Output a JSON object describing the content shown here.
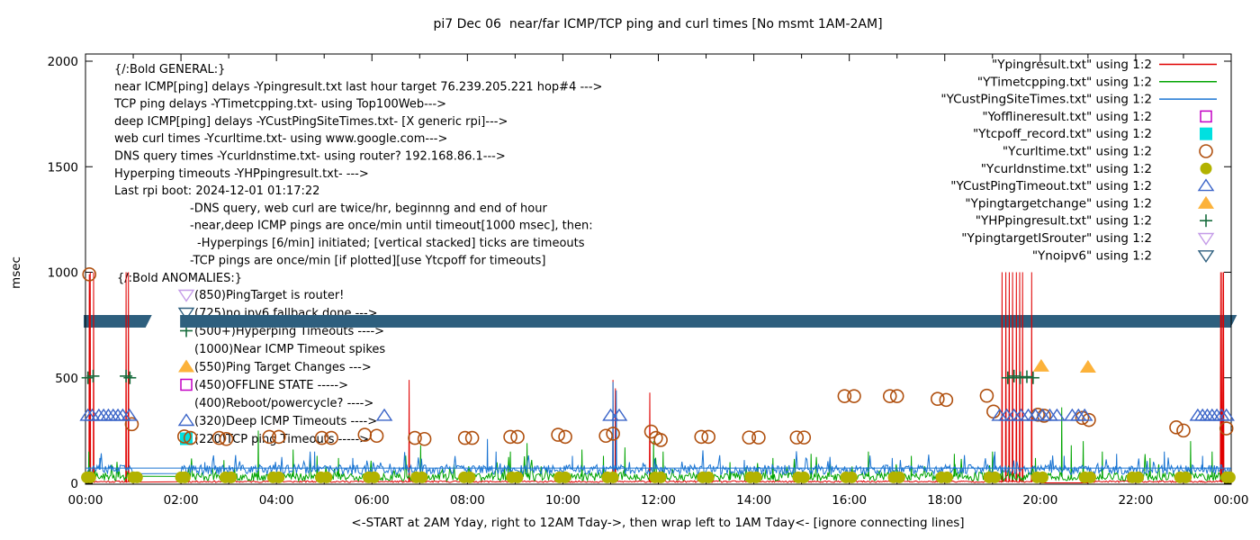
{
  "title": "pi7 Dec 06  near/far ICMP/TCP ping and curl times [No msmt 1AM-2AM]",
  "axes": {
    "y": {
      "label": "msec",
      "ticks": [
        0,
        500,
        1000,
        1500,
        2000
      ],
      "lim": [
        0,
        2000
      ]
    },
    "x": {
      "label": "<-START at 2AM Yday, right to 12AM Tday->, then wrap left to 1AM Tday<- [ignore connecting lines]",
      "tick_labels": [
        "00:00",
        "02:00",
        "04:00",
        "06:00",
        "08:00",
        "10:00",
        "12:00",
        "14:00",
        "16:00",
        "18:00",
        "20:00",
        "22:00",
        "00:00"
      ],
      "lim_hours": [
        0,
        24
      ],
      "minor_every_hours": 1,
      "major_every_hours": 2
    }
  },
  "colors": {
    "red": "#e00000",
    "green": "#00a400",
    "blue": "#1a74d2",
    "magenta": "#c400c4",
    "cyan": "#00e0e0",
    "orange_circle": "#b0500f",
    "olive": "#b2b200",
    "tri_blue": "#3a64c8",
    "tri_orange": "#fcb23a",
    "plus_green": "#166b3c",
    "violet": "#c49be8",
    "steel": "#2e5f7e",
    "band": "#2e5f7e"
  },
  "legend": {
    "entries": [
      {
        "label": "\"Ypingresult.txt\" using 1:2",
        "sample": "line",
        "color": "red"
      },
      {
        "label": "\"YTimetcpping.txt\" using 1:2",
        "sample": "line",
        "color": "green"
      },
      {
        "label": "\"YCustPingSiteTimes.txt\" using 1:2",
        "sample": "line",
        "color": "blue"
      },
      {
        "label": "\"Yofflineresult.txt\" using 1:2",
        "sample": "square-open",
        "color": "magenta"
      },
      {
        "label": "\"Ytcpoff_record.txt\" using 1:2",
        "sample": "square-filled",
        "color": "cyan"
      },
      {
        "label": "\"Ycurltime.txt\" using 1:2",
        "sample": "circle-open",
        "color": "orange_circle"
      },
      {
        "label": "\"Ycurldnstime.txt\" using 1:2",
        "sample": "circle-filled",
        "color": "olive"
      },
      {
        "label": "\"YCustPingTimeout.txt\" using 1:2",
        "sample": "tri-up-open",
        "color": "tri_blue"
      },
      {
        "label": "\"Ypingtargetchange\" using 1:2",
        "sample": "tri-up-filled",
        "color": "tri_orange"
      },
      {
        "label": "\"YHPpingresult.txt\" using 1:2",
        "sample": "plus",
        "color": "plus_green"
      },
      {
        "label": "\"YpingtargetISrouter\" using 1:2",
        "sample": "tri-down-open",
        "color": "violet"
      },
      {
        "label": "\"Ynoipv6\" using 1:2",
        "sample": "tri-down-open",
        "color": "steel"
      }
    ]
  },
  "annotations": {
    "general": {
      "lines": [
        {
          "text": "{/:Bold GENERAL:}",
          "indent": 0
        },
        {
          "text": "near ICMP[ping] delays -Ypingresult.txt last hour target 76.239.205.221 hop#4 --->",
          "indent": 0
        },
        {
          "text": "TCP ping delays -YTimetcpping.txt- using Top100Web--->",
          "indent": 0
        },
        {
          "text": "deep ICMP[ping] delays -YCustPingSiteTimes.txt- [X generic rpi]--->",
          "indent": 0
        },
        {
          "text": "web curl times -Ycurltime.txt- using www.google.com--->",
          "indent": 0
        },
        {
          "text": "DNS query times -Ycurldnstime.txt- using router? 192.168.86.1--->",
          "indent": 0
        },
        {
          "text": "Hyperping timeouts -YHPpingresult.txt- --->",
          "indent": 0
        },
        {
          "text": "Last rpi boot: 2024-12-01 01:17:22",
          "indent": 0
        },
        {
          "text": "-DNS query, web curl are twice/hr, beginnng and end of hour",
          "indent": 84
        },
        {
          "text": "-near,deep ICMP pings are once/min until timeout[1000 msec], then:",
          "indent": 84
        },
        {
          "text": "-Hyperpings [6/min] initiated; [vertical stacked] ticks are timeouts",
          "indent": 92
        },
        {
          "text": "-TCP pings are once/min [if plotted][use Ytcpoff for timeouts]",
          "indent": 84
        }
      ]
    },
    "anomalies": {
      "header": "{/:Bold ANOMALIES:}",
      "items": [
        {
          "marker": "tri-down-open",
          "color": "violet",
          "text": "(850)PingTarget is router!"
        },
        {
          "marker": "tri-down-open",
          "color": "steel",
          "text": "(725)no ipv6 fallback done --->",
          "obscured_by_band": true
        },
        {
          "marker": "plus",
          "color": "plus_green",
          "text": "(500+)Hyperping Timeouts ---->"
        },
        {
          "marker": null,
          "color": null,
          "text": "(1000)Near ICMP Timeout spikes"
        },
        {
          "marker": "tri-up-filled",
          "color": "tri_orange",
          "text": "(550)Ping Target Changes --->"
        },
        {
          "marker": "square-open",
          "color": "magenta",
          "text": "(450)OFFLINE STATE ----->"
        },
        {
          "marker": null,
          "color": null,
          "text": "(400)Reboot/powercycle? ---->"
        },
        {
          "marker": "tri-up-open",
          "color": "tri_blue",
          "text": "(320)Deep ICMP Timeouts ---->"
        },
        {
          "marker": "square-filled",
          "color": "cyan",
          "text": "(220)TCP ping Timeouts ----->"
        }
      ]
    },
    "band": {
      "value_msec": 760,
      "height_msec": 58,
      "segments_hours": [
        [
          0.0,
          1.0
        ],
        [
          1.07,
          1.22
        ],
        [
          2.02,
          23.95
        ]
      ],
      "color": "band",
      "note": "measurement-window bar, gap at 1AM-2AM (no msmt)"
    }
  },
  "chart_data": {
    "type": "line+scatter",
    "xlim_hours": [
      0,
      24
    ],
    "ylim_msec": [
      0,
      2000
    ],
    "plot_order": "today 00:00-01:00 plotted first, then yesterday 02:00-24:00 (connecting lines span the 1-2AM gap)",
    "series": [
      {
        "name": "Ypingresult.txt",
        "color": "red",
        "seed": 11,
        "baseline_msec": [
          4,
          12
        ],
        "flat_zero_hours": [
          20.0,
          21.0,
          2
        ],
        "spikes": [
          [
            0.08,
            990
          ],
          [
            0.1,
            1000
          ],
          [
            0.17,
            1000
          ],
          [
            0.85,
            1000
          ],
          [
            0.9,
            1000
          ],
          [
            6.78,
            490
          ],
          [
            11.05,
            490
          ],
          [
            11.1,
            450
          ],
          [
            11.82,
            430
          ],
          [
            19.2,
            1000
          ],
          [
            19.28,
            1000
          ],
          [
            19.35,
            1000
          ],
          [
            19.42,
            1000
          ],
          [
            19.5,
            1000
          ],
          [
            19.57,
            1000
          ],
          [
            19.63,
            1000
          ],
          [
            19.82,
            1000
          ],
          [
            23.78,
            1000
          ],
          [
            23.81,
            1000
          ],
          [
            23.84,
            1000
          ]
        ]
      },
      {
        "name": "YTimetcpping.txt",
        "color": "green",
        "seed": 23,
        "baseline_msec": [
          12,
          52
        ],
        "burst": [
          0.07,
          90
        ],
        "spikes": [
          [
            0.07,
            150
          ],
          [
            2.9,
            110
          ],
          [
            3.62,
            250
          ],
          [
            4.35,
            160
          ],
          [
            4.85,
            130
          ],
          [
            5.3,
            120
          ],
          [
            7.02,
            180
          ],
          [
            8.9,
            150
          ],
          [
            9.25,
            190
          ],
          [
            10.4,
            160
          ],
          [
            10.85,
            130
          ],
          [
            11.3,
            170
          ],
          [
            11.9,
            200
          ],
          [
            12.1,
            150
          ],
          [
            13.5,
            100
          ],
          [
            14.4,
            120
          ],
          [
            15.2,
            140
          ],
          [
            16.4,
            150
          ],
          [
            17.3,
            130
          ],
          [
            18.2,
            140
          ],
          [
            19.0,
            150
          ],
          [
            19.9,
            120
          ],
          [
            20.45,
            360
          ],
          [
            20.65,
            180
          ],
          [
            20.9,
            200
          ],
          [
            21.3,
            150
          ],
          [
            22.3,
            120
          ],
          [
            23.15,
            200
          ],
          [
            23.6,
            150
          ]
        ]
      },
      {
        "name": "YCustPingSiteTimes.txt",
        "color": "blue",
        "seed": 37,
        "baseline_msec": [
          42,
          88
        ],
        "burst": [
          0.06,
          80
        ],
        "wrap_line_msec": 72,
        "spikes": [
          [
            0.3,
            120
          ],
          [
            2.5,
            100
          ],
          [
            4.8,
            150
          ],
          [
            5.6,
            120
          ],
          [
            8.42,
            210
          ],
          [
            8.6,
            150
          ],
          [
            10.2,
            130
          ],
          [
            11.05,
            480
          ],
          [
            11.12,
            440
          ],
          [
            13.8,
            110
          ],
          [
            16.9,
            120
          ],
          [
            19.05,
            150
          ],
          [
            20.5,
            130
          ],
          [
            21.6,
            140
          ],
          [
            22.6,
            150
          ],
          [
            23.4,
            130
          ]
        ]
      }
    ],
    "markers": [
      {
        "name": "Ycurltime.txt",
        "shape": "circle-open",
        "color": "orange_circle",
        "points": [
          [
            0.08,
            990
          ],
          [
            0.97,
            280
          ],
          [
            2.07,
            222
          ],
          [
            2.2,
            215
          ],
          [
            2.8,
            215
          ],
          [
            2.95,
            210
          ],
          [
            3.85,
            220
          ],
          [
            4.05,
            220
          ],
          [
            4.95,
            215
          ],
          [
            5.15,
            215
          ],
          [
            5.85,
            230
          ],
          [
            6.1,
            225
          ],
          [
            6.9,
            215
          ],
          [
            7.1,
            210
          ],
          [
            7.95,
            215
          ],
          [
            8.1,
            215
          ],
          [
            8.9,
            220
          ],
          [
            9.05,
            220
          ],
          [
            9.9,
            230
          ],
          [
            10.05,
            220
          ],
          [
            10.9,
            225
          ],
          [
            11.05,
            235
          ],
          [
            11.85,
            245
          ],
          [
            11.95,
            215
          ],
          [
            12.05,
            205
          ],
          [
            12.9,
            220
          ],
          [
            13.05,
            220
          ],
          [
            13.9,
            217
          ],
          [
            14.1,
            217
          ],
          [
            14.9,
            217
          ],
          [
            15.05,
            217
          ],
          [
            15.9,
            413
          ],
          [
            16.1,
            413
          ],
          [
            16.85,
            413
          ],
          [
            17.0,
            413
          ],
          [
            17.85,
            400
          ],
          [
            18.03,
            395
          ],
          [
            18.88,
            415
          ],
          [
            19.02,
            340
          ],
          [
            19.95,
            325
          ],
          [
            20.08,
            320
          ],
          [
            20.88,
            310
          ],
          [
            21.02,
            300
          ],
          [
            22.85,
            265
          ],
          [
            23.0,
            250
          ],
          [
            23.9,
            260
          ]
        ]
      },
      {
        "name": "Ycurldnstime.txt",
        "shape": "circle-filled",
        "color": "olive",
        "value_msec": 28,
        "times": [
          0.03,
          0.1,
          1.0,
          1.08,
          2.0,
          2.08,
          2.93,
          3.05,
          3.93,
          4.05,
          4.93,
          5.05,
          5.93,
          6.05,
          6.93,
          7.05,
          7.93,
          8.05,
          8.93,
          9.05,
          9.93,
          10.05,
          10.93,
          11.05,
          11.93,
          12.05,
          12.93,
          13.05,
          13.93,
          14.05,
          14.93,
          15.05,
          15.93,
          16.05,
          16.93,
          17.05,
          17.93,
          18.05,
          18.93,
          19.05,
          19.93,
          20.05,
          20.93,
          21.05,
          21.93,
          22.05,
          22.93,
          23.05,
          23.9,
          23.97
        ]
      },
      {
        "name": "YCustPingTimeout.txt",
        "shape": "tri-up-open",
        "color": "tri_blue",
        "value_msec": 320,
        "times": [
          0.05,
          0.14,
          0.28,
          0.38,
          0.48,
          0.58,
          0.68,
          0.78,
          0.92,
          6.26,
          11.0,
          11.18,
          19.15,
          19.3,
          19.45,
          19.6,
          19.75,
          19.9,
          20.05,
          20.2,
          20.35,
          20.67,
          20.8,
          20.93,
          23.3,
          23.4,
          23.5,
          23.6,
          23.7,
          23.8,
          23.9
        ]
      },
      {
        "name": "YHPpingresult.txt",
        "shape": "plus",
        "color": "plus_green",
        "points": [
          [
            0.05,
            500
          ],
          [
            0.16,
            508
          ],
          [
            0.85,
            508
          ],
          [
            0.93,
            500
          ],
          [
            19.32,
            500
          ],
          [
            19.45,
            508
          ],
          [
            19.58,
            500
          ],
          [
            19.72,
            505
          ],
          [
            19.85,
            500
          ]
        ]
      },
      {
        "name": "Ypingtargetchange",
        "shape": "tri-up-filled",
        "color": "tri_orange",
        "points": [
          [
            20.02,
            555
          ],
          [
            21.0,
            550
          ]
        ]
      },
      {
        "name": "Yofflineresult.txt",
        "shape": "square-open",
        "color": "magenta",
        "points": []
      },
      {
        "name": "Ytcpoff_record.txt",
        "shape": "square-filled",
        "color": "cyan",
        "points": []
      },
      {
        "name": "YpingtargetISrouter",
        "shape": "tri-down-open",
        "color": "violet",
        "points": []
      },
      {
        "name": "Ynoipv6",
        "shape": "tri-down-open",
        "color": "steel",
        "points": []
      }
    ]
  }
}
